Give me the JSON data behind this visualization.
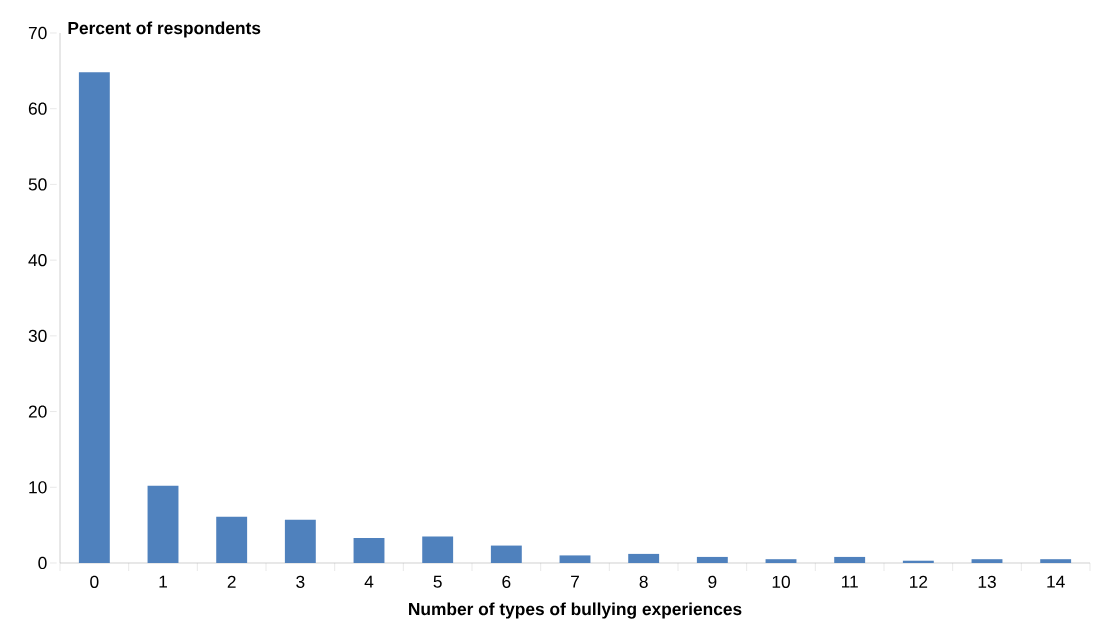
{
  "chart_data": {
    "type": "bar",
    "xlabel": "Number of types of bullying experiences",
    "ylabel": "Percent of respondents",
    "categories": [
      "0",
      "1",
      "2",
      "3",
      "4",
      "5",
      "6",
      "7",
      "8",
      "9",
      "10",
      "11",
      "12",
      "13",
      "14"
    ],
    "values": [
      64.8,
      10.2,
      6.1,
      5.7,
      3.3,
      3.5,
      2.3,
      1.0,
      1.2,
      0.8,
      0.5,
      0.8,
      0.3,
      0.5,
      0.5
    ],
    "color": "#4f81bd",
    "ylim": [
      0,
      70
    ],
    "yticks": [
      0,
      10,
      20,
      30,
      40,
      50,
      60,
      70
    ]
  }
}
